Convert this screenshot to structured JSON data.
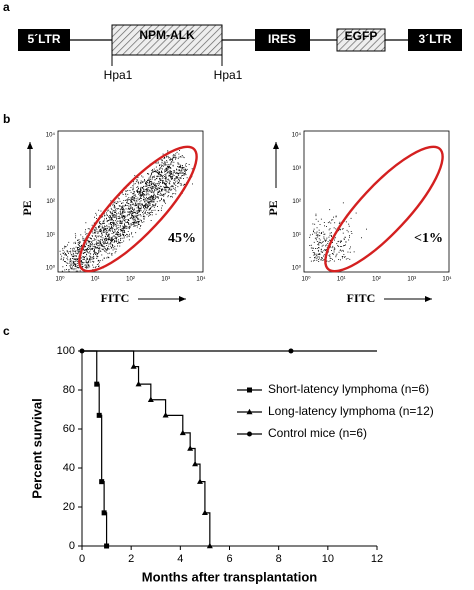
{
  "panel_a": {
    "label": "a",
    "elements": [
      "5´LTR",
      "NPM-ALK",
      "IRES",
      "EGFP",
      "3´LTR"
    ],
    "sites": [
      "Hpa1",
      "Hpa1"
    ]
  },
  "panel_b": {
    "label": "b",
    "ticks": [
      "10⁰",
      "10¹",
      "10²",
      "10³",
      "10⁴"
    ],
    "plots": [
      {
        "y_label": "PE",
        "x_label": "FITC",
        "gate_label": "45%"
      },
      {
        "y_label": "PE",
        "x_label": "FITC",
        "gate_label": "<1%"
      }
    ]
  },
  "chart_data": {
    "type": "line",
    "panel_label": "c",
    "x_label": "Months after transplantation",
    "y_label": "Percent survival",
    "xlim": [
      0,
      12
    ],
    "ylim": [
      0,
      100
    ],
    "xticks": [
      0,
      2,
      4,
      6,
      8,
      10,
      12
    ],
    "yticks": [
      0,
      20,
      40,
      60,
      80,
      100
    ],
    "series": [
      {
        "name": "Short-latency lymphoma (n=6)",
        "color": "#000000",
        "marker": "square",
        "x": [
          0,
          0.6,
          0.7,
          0.8,
          0.9,
          1.0
        ],
        "values": [
          100,
          83,
          67,
          33,
          17,
          0
        ]
      },
      {
        "name": "Long-latency lymphoma (n=12)",
        "color": "#000000",
        "marker": "triangle",
        "x": [
          0,
          2.1,
          2.3,
          2.8,
          3.4,
          4.1,
          4.4,
          4.6,
          4.8,
          5.0,
          5.2
        ],
        "values": [
          100,
          92,
          83,
          75,
          67,
          58,
          50,
          42,
          33,
          17,
          0
        ]
      },
      {
        "name": "Control mice (n=6)",
        "color": "#000000",
        "marker": "circle",
        "x": [
          0,
          8.5
        ],
        "values": [
          100,
          100
        ]
      }
    ]
  }
}
